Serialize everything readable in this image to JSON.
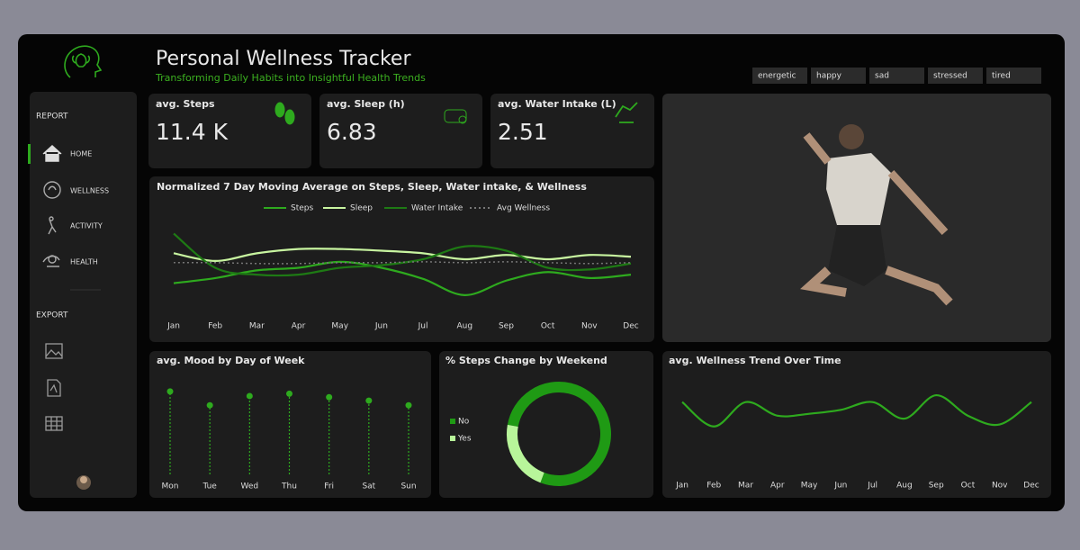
{
  "header": {
    "title": "Personal Wellness Tracker",
    "subtitle": "Transforming Daily Habits into Insightful Health Trends"
  },
  "mood_filters": [
    "energetic",
    "happy",
    "sad",
    "stressed",
    "tired"
  ],
  "nav": {
    "report_label": "REPORT",
    "items": [
      "HOME",
      "WELLNESS",
      "ACTIVITY",
      "HEALTH"
    ],
    "export_label": "EXPORT"
  },
  "kpis": [
    {
      "label": "avg. Steps",
      "value": "11.4 K"
    },
    {
      "label": "avg. Sleep (h)",
      "value": "6.83"
    },
    {
      "label": "avg. Water Intake (L)",
      "value": "2.51"
    }
  ],
  "chart_data": [
    {
      "type": "line",
      "title": "Normalized 7 Day Moving Average on Steps, Sleep, Water intake, & Wellness",
      "categories": [
        "Jan",
        "Feb",
        "Mar",
        "Apr",
        "May",
        "Jun",
        "Jul",
        "Aug",
        "Sep",
        "Oct",
        "Nov",
        "Dec"
      ],
      "ylim": [
        0,
        1
      ],
      "legend": "top",
      "series": [
        {
          "name": "Steps",
          "color": "#2eaa1e",
          "values": [
            0.32,
            0.38,
            0.47,
            0.5,
            0.57,
            0.5,
            0.37,
            0.18,
            0.35,
            0.45,
            0.38,
            0.42
          ]
        },
        {
          "name": "Sleep",
          "color": "#c8f5a0",
          "values": [
            0.67,
            0.58,
            0.67,
            0.72,
            0.72,
            0.7,
            0.67,
            0.6,
            0.65,
            0.6,
            0.65,
            0.63
          ]
        },
        {
          "name": "Water Intake",
          "color": "#1e7a14",
          "values": [
            0.9,
            0.5,
            0.42,
            0.42,
            0.5,
            0.53,
            0.6,
            0.75,
            0.7,
            0.5,
            0.48,
            0.55
          ]
        },
        {
          "name": "Avg Wellness",
          "color": "#777777",
          "dashed": true,
          "values": [
            0.56,
            0.56,
            0.55,
            0.55,
            0.56,
            0.56,
            0.57,
            0.56,
            0.57,
            0.56,
            0.55,
            0.56
          ]
        }
      ]
    },
    {
      "type": "lollipop",
      "title": "avg. Mood by Day of Week",
      "categories": [
        "Mon",
        "Tue",
        "Wed",
        "Thu",
        "Fri",
        "Sat",
        "Sun"
      ],
      "values": [
        7.2,
        6.0,
        6.8,
        7.0,
        6.7,
        6.4,
        6.0
      ],
      "ylim": [
        0,
        10
      ],
      "color": "#2eaa1e"
    },
    {
      "type": "donut",
      "title": "% Steps Change by Weekend",
      "categories": [
        "No",
        "Yes"
      ],
      "values": [
        78,
        22
      ],
      "colors": [
        "#1f9a14",
        "#b8f59a"
      ]
    },
    {
      "type": "spline",
      "title": "avg. Wellness Trend Over Time",
      "categories": [
        "Jan",
        "Feb",
        "Mar",
        "Apr",
        "May",
        "Jun",
        "Jul",
        "Aug",
        "Sep",
        "Oct",
        "Nov",
        "Dec"
      ],
      "values": [
        7.0,
        4.5,
        7.0,
        5.6,
        5.8,
        6.2,
        7.0,
        5.3,
        7.7,
        5.6,
        4.7,
        7.0
      ],
      "ylim": [
        3,
        9
      ],
      "color": "#2eaa1e"
    }
  ]
}
